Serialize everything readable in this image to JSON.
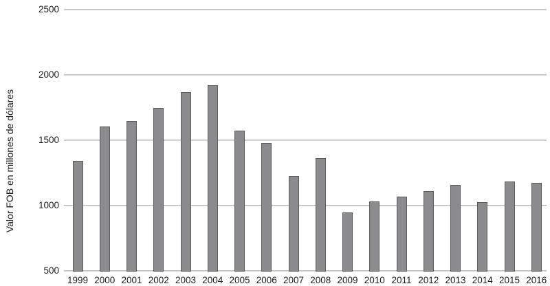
{
  "chart_data": {
    "type": "bar",
    "title": "",
    "categories": [
      "1999",
      "2000",
      "2001",
      "2002",
      "2003",
      "2004",
      "2005",
      "2006",
      "2007",
      "2008",
      "2009",
      "2010",
      "2011",
      "2012",
      "2013",
      "2014",
      "2015",
      "2016"
    ],
    "values": [
      1340,
      1605,
      1650,
      1750,
      1870,
      1920,
      1575,
      1480,
      1225,
      1365,
      945,
      1030,
      1070,
      1110,
      1160,
      1025,
      1185,
      1175
    ],
    "xlabel": "",
    "ylabel": "Valor FOB en millones de dólares",
    "ylim": [
      500,
      2500
    ],
    "yticks": [
      2500,
      2000,
      1500,
      1000,
      500
    ],
    "grid": true,
    "legend": "none"
  },
  "colors": {
    "background": "#ffffff",
    "bar_fill": "#8b8b8d",
    "bar_border": "#59595b",
    "gridline_top": "#b3b3b3",
    "gridline_bottom": "#e2e2e2",
    "text": "#1c1c1c"
  }
}
